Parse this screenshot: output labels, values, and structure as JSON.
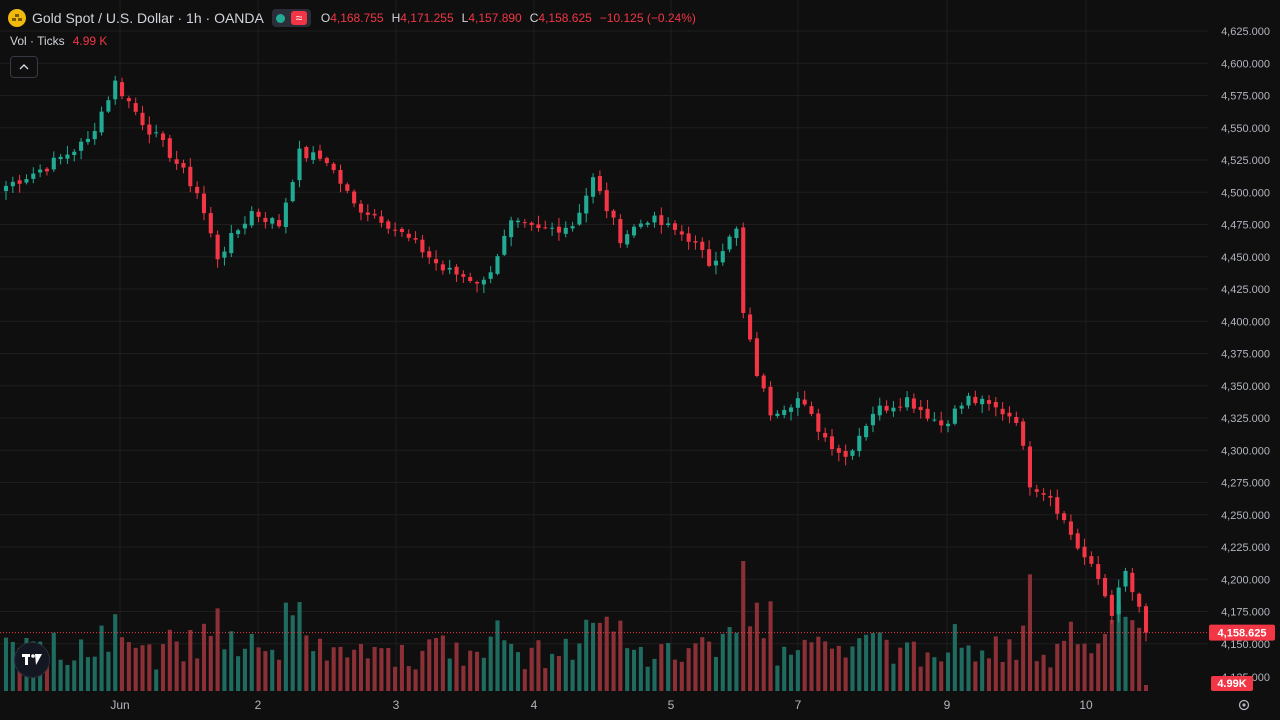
{
  "header": {
    "symbol_title": "Gold Spot / U.S. Dollar · 1h · OANDA",
    "ohlc": [
      {
        "k": "O",
        "v": "4,168.755"
      },
      {
        "k": "H",
        "v": "4,171.255"
      },
      {
        "k": "L",
        "v": "4,157.890"
      },
      {
        "k": "C",
        "v": "4,158.625"
      }
    ],
    "change": "−10.125 (−0.24%)"
  },
  "volume_legend": {
    "label": "Vol · Ticks",
    "value": "4.99 K"
  },
  "price_tag": "4,158.625",
  "volume_tag": "4.99K",
  "partial_tick_label": "4,125.000",
  "colors": {
    "up": "#22ab94",
    "down": "#f23645",
    "background": "#0f0f0f",
    "grid": "#1e1e1e",
    "text": "#d1d4dc"
  },
  "icons": {
    "logo": "gold-coin-icon",
    "collapse": "chevron-up-icon",
    "brand": "tradingview-logo-icon",
    "settings": "settings-gear-icon"
  },
  "chart_data": {
    "type": "candlestick",
    "y_ticks": [
      "4,625.000",
      "4,600.000",
      "4,575.000",
      "4,550.000",
      "4,525.000",
      "4,500.000",
      "4,475.000",
      "4,450.000",
      "4,425.000",
      "4,400.000",
      "4,375.000",
      "4,350.000",
      "4,325.000",
      "4,300.000",
      "4,275.000",
      "4,250.000",
      "4,225.000",
      "4,200.000",
      "4,175.000",
      "4,150.000"
    ],
    "ylim": [
      4120,
      4630
    ],
    "x_tick_labels": [
      "Jun",
      "2",
      "3",
      "4",
      "5",
      "7",
      "9",
      "10"
    ],
    "last_price": 4158.625,
    "last_volume_k": 4.99,
    "anchors": [
      [
        0,
        4505
      ],
      [
        6,
        4520
      ],
      [
        12,
        4540
      ],
      [
        16,
        4585
      ],
      [
        20,
        4555
      ],
      [
        24,
        4530
      ],
      [
        28,
        4500
      ],
      [
        31,
        4450
      ],
      [
        36,
        4485
      ],
      [
        40,
        4475
      ],
      [
        43,
        4530
      ],
      [
        47,
        4525
      ],
      [
        51,
        4490
      ],
      [
        55,
        4480
      ],
      [
        61,
        4455
      ],
      [
        64,
        4440
      ],
      [
        70,
        4430
      ],
      [
        74,
        4475
      ],
      [
        78,
        4470
      ],
      [
        83,
        4475
      ],
      [
        86,
        4510
      ],
      [
        90,
        4465
      ],
      [
        94,
        4480
      ],
      [
        100,
        4465
      ],
      [
        103,
        4445
      ],
      [
        107,
        4470
      ],
      [
        108,
        4405
      ],
      [
        110,
        4360
      ],
      [
        112,
        4330
      ],
      [
        116,
        4340
      ],
      [
        120,
        4310
      ],
      [
        123,
        4295
      ],
      [
        127,
        4330
      ],
      [
        132,
        4340
      ],
      [
        137,
        4320
      ],
      [
        141,
        4340
      ],
      [
        146,
        4330
      ],
      [
        148,
        4325
      ],
      [
        150,
        4275
      ],
      [
        153,
        4265
      ],
      [
        157,
        4225
      ],
      [
        160,
        4200
      ],
      [
        162,
        4175
      ],
      [
        164,
        4205
      ],
      [
        167,
        4160
      ]
    ]
  }
}
